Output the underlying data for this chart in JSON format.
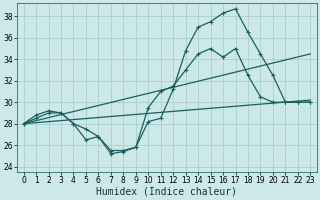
{
  "xlabel": "Humidex (Indice chaleur)",
  "bg_color": "#cce8e8",
  "grid_color": "#aacfcf",
  "line_color": "#1a5f5f",
  "xlim": [
    -0.5,
    23.5
  ],
  "ylim": [
    23.5,
    39.2
  ],
  "yticks": [
    24,
    26,
    28,
    30,
    32,
    34,
    36,
    38
  ],
  "xticks": [
    0,
    1,
    2,
    3,
    4,
    5,
    6,
    7,
    8,
    9,
    10,
    11,
    12,
    13,
    14,
    15,
    16,
    17,
    18,
    19,
    20,
    21,
    22,
    23
  ],
  "line1_x": [
    0,
    1,
    2,
    3,
    4,
    5,
    6,
    7,
    8,
    9,
    10,
    11,
    12,
    13,
    14,
    15,
    16,
    17,
    18,
    19,
    20,
    21,
    22,
    23
  ],
  "line1_y": [
    28.0,
    28.8,
    29.2,
    29.0,
    28.0,
    27.5,
    26.8,
    25.2,
    25.4,
    25.8,
    28.2,
    28.5,
    31.2,
    34.8,
    37.0,
    37.5,
    38.3,
    38.7,
    36.5,
    34.5,
    32.5,
    30.0,
    30.0,
    30.0
  ],
  "line2_x": [
    0,
    1,
    2,
    3,
    4,
    5,
    6,
    7,
    8,
    9,
    10,
    11,
    12,
    13,
    14,
    15,
    16,
    17,
    18,
    19,
    20,
    21,
    22,
    23
  ],
  "line2_y": [
    28.0,
    28.5,
    29.0,
    29.0,
    28.0,
    26.5,
    26.8,
    25.5,
    25.5,
    25.8,
    29.5,
    31.0,
    31.5,
    33.0,
    34.5,
    35.0,
    34.2,
    35.0,
    32.5,
    30.5,
    30.0,
    30.0,
    30.0,
    30.0
  ],
  "line3_x": [
    0,
    23
  ],
  "line3_y": [
    28.0,
    30.2
  ],
  "line4_x": [
    0,
    23
  ],
  "line4_y": [
    28.0,
    34.5
  ],
  "xlabel_fontsize": 7,
  "tick_fontsize": 5.5
}
